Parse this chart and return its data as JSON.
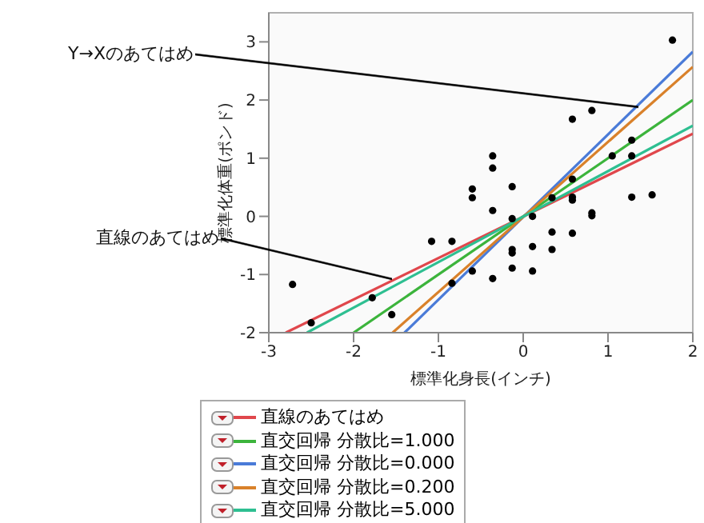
{
  "chart_data": {
    "type": "scatter",
    "xlabel": "標準化身長(インチ)",
    "ylabel": "標準化体重(ポンド)",
    "xlim": [
      -3,
      2
    ],
    "ylim": [
      -2,
      3.5
    ],
    "xticks": [
      -3,
      -2,
      -1,
      0,
      1,
      2
    ],
    "yticks": [
      -2,
      -1,
      0,
      1,
      2,
      3
    ],
    "legend": "bottom",
    "annotations": [
      {
        "text": "Y→Xのあてはめ",
        "x": 1.36,
        "y": 1.88
      },
      {
        "text": "直線のあてはめ",
        "x": -1.54,
        "y": -1.08
      }
    ],
    "series": [
      {
        "type": "scatter",
        "color": "#000000",
        "marker": "circle",
        "x": [
          -2.72,
          -2.5,
          -1.78,
          -1.55,
          -1.08,
          -0.84,
          -0.84,
          -0.6,
          -0.6,
          -0.6,
          -0.36,
          -0.36,
          -0.36,
          -0.36,
          -0.13,
          -0.13,
          -0.13,
          -0.13,
          -0.13,
          0.11,
          0.11,
          0.11,
          0.34,
          0.34,
          0.34,
          0.58,
          0.58,
          0.58,
          0.58,
          0.58,
          0.81,
          0.81,
          0.81,
          1.05,
          1.28,
          1.28,
          1.28,
          1.52,
          1.76
        ],
        "values": [
          -1.17,
          -1.83,
          -1.4,
          -1.69,
          -0.43,
          -0.43,
          -1.15,
          0.47,
          0.32,
          -0.94,
          1.04,
          0.83,
          0.1,
          -1.07,
          0.51,
          -0.04,
          -0.57,
          -0.63,
          -0.89,
          0,
          -0.52,
          -0.94,
          -0.27,
          -0.57,
          0.32,
          1.67,
          0.64,
          0.33,
          0.28,
          -0.29,
          1.82,
          0.06,
          0.01,
          1.04,
          1.31,
          1.04,
          0.33,
          0.37,
          3.03
        ]
      },
      {
        "type": "line",
        "name": "直線のあてはめ",
        "color": "#e0474c",
        "x": [
          -2.8,
          2
        ],
        "values": [
          -2,
          1.42
        ]
      },
      {
        "type": "line",
        "name": "直交回帰 分散比=1.000",
        "color": "#3cb43c",
        "x": [
          -2,
          2
        ],
        "values": [
          -2,
          2
        ]
      },
      {
        "type": "line",
        "name": "直交回帰 分散比=0.000",
        "color": "#4a7bd8",
        "x": [
          -1.4,
          2
        ],
        "values": [
          -2,
          2.83
        ]
      },
      {
        "type": "line",
        "name": "直交回帰 分散比=0.200",
        "color": "#d9812a",
        "x": [
          -1.54,
          2
        ],
        "values": [
          -2,
          2.57
        ]
      },
      {
        "type": "line",
        "name": "直交回帰 分散比=5.000",
        "color": "#2ebf91",
        "x": [
          -2.55,
          2
        ],
        "values": [
          -2,
          1.56
        ]
      }
    ]
  }
}
